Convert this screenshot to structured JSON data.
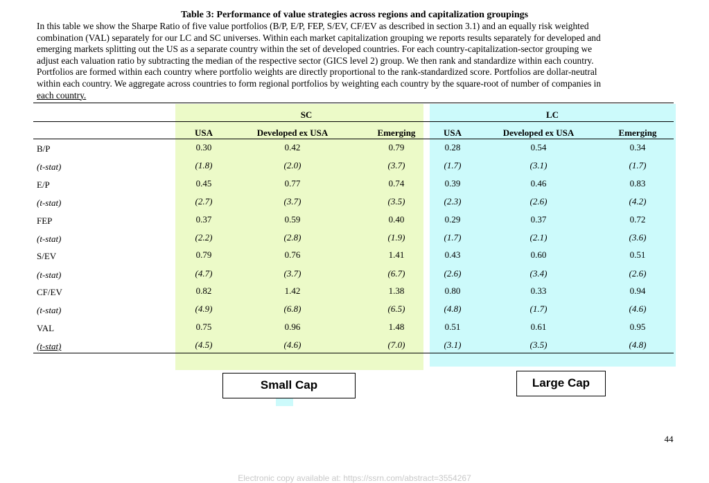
{
  "title": "Table 3: Performance of value strategies across regions and capitalization groupings",
  "caption_lines": [
    "In this table we show the Sharpe Ratio of five value portfolios (B/P, E/P, FEP, S/EV, CF/EV as described in section 3.1) and an equally risk weighted",
    "combination (VAL) separately for our LC and SC universes.  Within each market capitalization grouping we reports results separately for developed and",
    "emerging markets splitting out the US as a separate country within the set of developed countries.  For each country-capitalization-sector grouping we",
    "adjust each valuation ratio by subtracting the median of the respective sector (GICS level 2) group.  We then rank and standardize within each country.",
    "Portfolios are formed within each country where portfolio weights are directly proportional to the rank-standardized score.  Portfolios are dollar-neutral",
    "within each country.  We aggregate across countries to form regional portfolios by weighting each country by the square-root of number of companies in",
    "each country."
  ],
  "table": {
    "groups": [
      "SC",
      "LC"
    ],
    "columns": [
      "USA",
      "Developed ex USA",
      "Emerging",
      "USA",
      "Developed ex USA",
      "Emerging"
    ],
    "rows": [
      {
        "label": "B/P",
        "values": [
          "0.30",
          "0.42",
          "0.79",
          "0.28",
          "0.54",
          "0.34"
        ]
      },
      {
        "label": "(t-stat)",
        "values": [
          "(1.8)",
          "(2.0)",
          "(3.7)",
          "(1.7)",
          "(3.1)",
          "(1.7)"
        ]
      },
      {
        "label": "E/P",
        "values": [
          "0.45",
          "0.77",
          "0.74",
          "0.39",
          "0.46",
          "0.83"
        ]
      },
      {
        "label": "(t-stat)",
        "values": [
          "(2.7)",
          "(3.7)",
          "(3.5)",
          "(2.3)",
          "(2.6)",
          "(4.2)"
        ]
      },
      {
        "label": "FEP",
        "values": [
          "0.37",
          "0.59",
          "0.40",
          "0.29",
          "0.37",
          "0.72"
        ]
      },
      {
        "label": "(t-stat)",
        "values": [
          "(2.2)",
          "(2.8)",
          "(1.9)",
          "(1.7)",
          "(2.1)",
          "(3.6)"
        ]
      },
      {
        "label": "S/EV",
        "values": [
          "0.79",
          "0.76",
          "1.41",
          "0.43",
          "0.60",
          "0.51"
        ]
      },
      {
        "label": "(t-stat)",
        "values": [
          "(4.7)",
          "(3.7)",
          "(6.7)",
          "(2.6)",
          "(3.4)",
          "(2.6)"
        ]
      },
      {
        "label": "CF/EV",
        "values": [
          "0.82",
          "1.42",
          "1.38",
          "0.80",
          "0.33",
          "0.94"
        ]
      },
      {
        "label": "(t-stat)",
        "values": [
          "(4.9)",
          "(6.8)",
          "(6.5)",
          "(4.8)",
          "(1.7)",
          "(4.6)"
        ]
      },
      {
        "label": "VAL",
        "values": [
          "0.75",
          "0.96",
          "1.48",
          "0.51",
          "0.61",
          "0.95"
        ]
      },
      {
        "label": "(t-stat)",
        "values": [
          "(4.5)",
          "(4.6)",
          "(7.0)",
          "(3.1)",
          "(3.5)",
          "(4.8)"
        ]
      }
    ]
  },
  "labels": {
    "small_cap": "Small Cap",
    "large_cap": "Large Cap"
  },
  "page_number": "44",
  "footer": "Electronic copy available at: https://ssrn.com/abstract=3554267"
}
